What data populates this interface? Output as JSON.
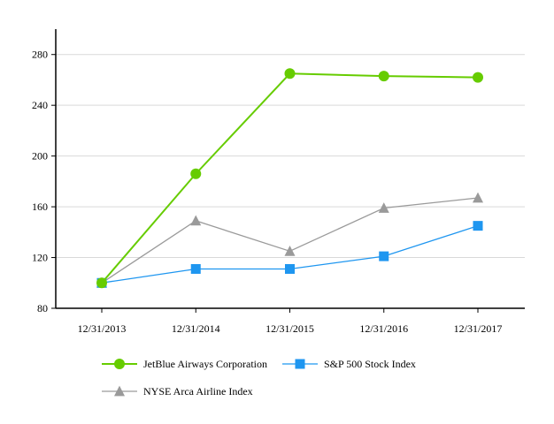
{
  "chart_data": {
    "type": "line",
    "title": "",
    "xlabel": "",
    "ylabel": "",
    "categories": [
      "12/31/2013",
      "12/31/2014",
      "12/31/2015",
      "12/31/2016",
      "12/31/2017"
    ],
    "ylim": [
      80,
      300
    ],
    "yticks": [
      80,
      120,
      160,
      200,
      240,
      280
    ],
    "grid": "horizontal",
    "legend_position": "bottom",
    "series": [
      {
        "name": "JetBlue Airways Corporation",
        "values": [
          100,
          186,
          265,
          263,
          262
        ],
        "color": "#66cc00",
        "marker": "circle"
      },
      {
        "name": "S&P 500 Stock Index",
        "values": [
          100,
          111,
          111,
          121,
          145
        ],
        "color": "#1e96f0",
        "marker": "square"
      },
      {
        "name": "NYSE Arca Airline Index",
        "values": [
          100,
          149,
          125,
          159,
          167
        ],
        "color": "#9a9a9a",
        "marker": "triangle"
      }
    ]
  }
}
